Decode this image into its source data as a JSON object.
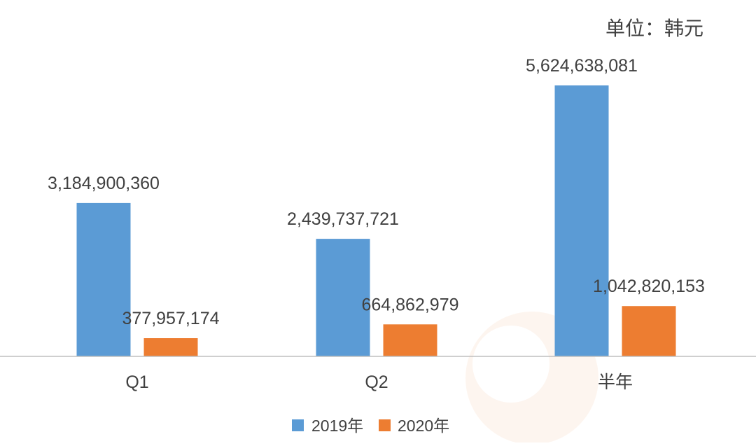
{
  "chart_data": {
    "type": "bar",
    "unit_label": "单位：韩元",
    "categories": [
      "Q1",
      "Q2",
      "半年"
    ],
    "series": [
      {
        "name": "2019年",
        "color": "#5B9BD5",
        "values": [
          3184900360,
          2439737721,
          5624638081
        ],
        "labels": [
          "3,184,900,360",
          "2,439,737,721",
          "5,624,638,081"
        ]
      },
      {
        "name": "2020年",
        "color": "#ED7D31",
        "values": [
          377957174,
          664862979,
          1042820153
        ],
        "labels": [
          "377,957,174",
          "664,862,979",
          "1,042,820,153"
        ]
      }
    ],
    "ylim": [
      0,
      6500000000
    ],
    "grid": false,
    "legend_position": "bottom-center",
    "xlabel": "",
    "ylabel": ""
  }
}
